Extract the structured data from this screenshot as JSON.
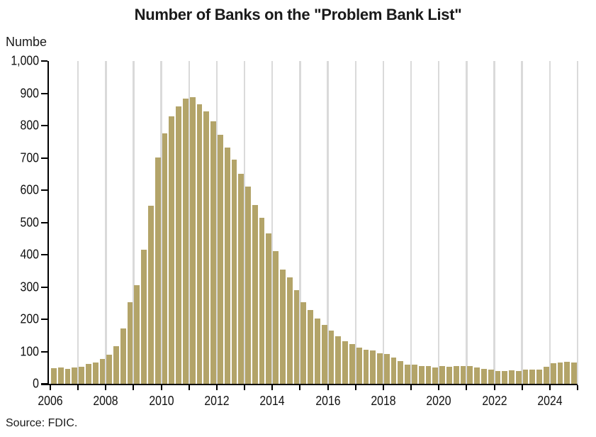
{
  "title": "Number of Banks on the \"Problem Bank List\"",
  "y_axis_title": "Numbe",
  "source_note": "Source: FDIC.",
  "colors": {
    "bar": "#b3a469",
    "gridline": "#dadada",
    "axis": "#000000",
    "title_text": "#1a1a1a"
  },
  "chart_data": {
    "type": "bar",
    "title": "Number of Banks on the \"Problem Bank List\"",
    "xlabel": "",
    "ylabel": "Numbe",
    "ylim": [
      0,
      1000
    ],
    "grid": "vertical-year-gridlines",
    "legend": "none",
    "source": "Source: FDIC.",
    "y_tick_labels": [
      "0",
      "100",
      "200",
      "300",
      "400",
      "500",
      "600",
      "700",
      "800",
      "900",
      "1,000"
    ],
    "x_tick_labels": [
      "2006",
      "2008",
      "2010",
      "2012",
      "2014",
      "2016",
      "2018",
      "2020",
      "2022",
      "2024"
    ],
    "categories": [
      "2006 Q1",
      "2006 Q2",
      "2006 Q3",
      "2006 Q4",
      "2007 Q1",
      "2007 Q2",
      "2007 Q3",
      "2007 Q4",
      "2008 Q1",
      "2008 Q2",
      "2008 Q3",
      "2008 Q4",
      "2009 Q1",
      "2009 Q2",
      "2009 Q3",
      "2009 Q4",
      "2010 Q1",
      "2010 Q2",
      "2010 Q3",
      "2010 Q4",
      "2011 Q1",
      "2011 Q2",
      "2011 Q3",
      "2011 Q4",
      "2012 Q1",
      "2012 Q2",
      "2012 Q3",
      "2012 Q4",
      "2013 Q1",
      "2013 Q2",
      "2013 Q3",
      "2013 Q4",
      "2014 Q1",
      "2014 Q2",
      "2014 Q3",
      "2014 Q4",
      "2015 Q1",
      "2015 Q2",
      "2015 Q3",
      "2015 Q4",
      "2016 Q1",
      "2016 Q2",
      "2016 Q3",
      "2016 Q4",
      "2017 Q1",
      "2017 Q2",
      "2017 Q3",
      "2017 Q4",
      "2018 Q1",
      "2018 Q2",
      "2018 Q3",
      "2018 Q4",
      "2019 Q1",
      "2019 Q2",
      "2019 Q3",
      "2019 Q4",
      "2020 Q1",
      "2020 Q2",
      "2020 Q3",
      "2020 Q4",
      "2021 Q1",
      "2021 Q2",
      "2021 Q3",
      "2021 Q4",
      "2022 Q1",
      "2022 Q2",
      "2022 Q3",
      "2022 Q4",
      "2023 Q1",
      "2023 Q2",
      "2023 Q3",
      "2023 Q4",
      "2024 Q1",
      "2024 Q2",
      "2024 Q3",
      "2024 Q4"
    ],
    "values": [
      48,
      50,
      47,
      50,
      53,
      61,
      65,
      76,
      90,
      117,
      171,
      252,
      305,
      416,
      552,
      702,
      775,
      829,
      860,
      884,
      888,
      865,
      844,
      813,
      772,
      732,
      694,
      651,
      612,
      553,
      515,
      467,
      411,
      354,
      329,
      291,
      253,
      228,
      203,
      183,
      165,
      147,
      132,
      123,
      112,
      105,
      104,
      95,
      92,
      82,
      71,
      60,
      59,
      56,
      55,
      51,
      54,
      52,
      56,
      56,
      55,
      51,
      46,
      44,
      40,
      40,
      42,
      39,
      43,
      43,
      44,
      52,
      63,
      66,
      68,
      66
    ]
  }
}
